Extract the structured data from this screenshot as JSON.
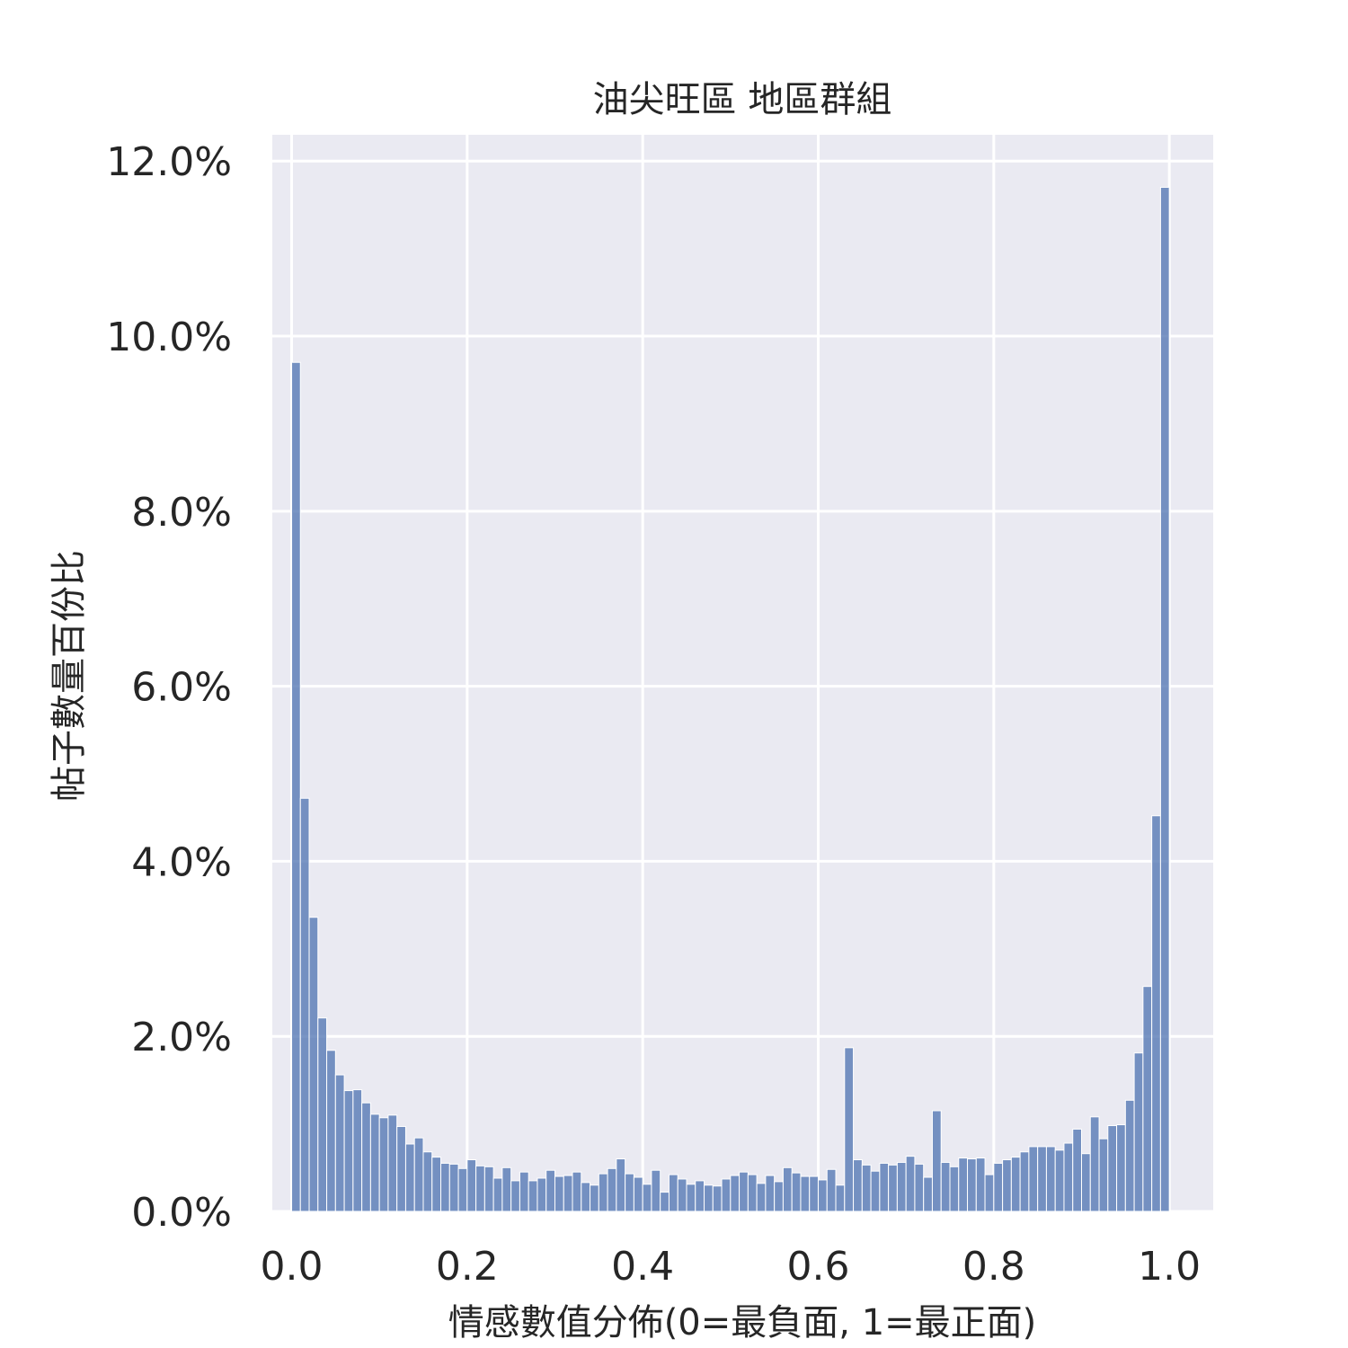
{
  "chart_data": {
    "type": "bar",
    "title": "油尖旺區 地區群組",
    "xlabel": "情感數值分佈(0=最負面, 1=最正面)",
    "ylabel": "帖子數量百份比",
    "xlim": [
      -0.022,
      1.05
    ],
    "ylim": [
      0,
      12.3
    ],
    "x_ticks": [
      "0.0",
      "0.2",
      "0.4",
      "0.6",
      "0.8",
      "1.0"
    ],
    "y_ticks": [
      "0.0%",
      "2.0%",
      "4.0%",
      "6.0%",
      "8.0%",
      "10.0%",
      "12.0%"
    ],
    "x_tick_values": [
      0.0,
      0.2,
      0.4,
      0.6,
      0.8,
      1.0
    ],
    "y_tick_values": [
      0,
      2,
      4,
      6,
      8,
      10,
      12
    ],
    "bin_start": 0.0,
    "bin_width": 0.01,
    "values": [
      9.7,
      4.72,
      3.36,
      2.21,
      1.84,
      1.56,
      1.38,
      1.39,
      1.24,
      1.11,
      1.07,
      1.1,
      0.97,
      0.77,
      0.84,
      0.68,
      0.62,
      0.55,
      0.54,
      0.49,
      0.59,
      0.52,
      0.51,
      0.38,
      0.5,
      0.35,
      0.45,
      0.35,
      0.38,
      0.47,
      0.4,
      0.41,
      0.45,
      0.33,
      0.3,
      0.43,
      0.49,
      0.6,
      0.43,
      0.39,
      0.31,
      0.47,
      0.22,
      0.42,
      0.37,
      0.31,
      0.35,
      0.3,
      0.29,
      0.37,
      0.41,
      0.45,
      0.42,
      0.32,
      0.41,
      0.34,
      0.5,
      0.44,
      0.4,
      0.4,
      0.36,
      0.48,
      0.3,
      1.87,
      0.59,
      0.53,
      0.46,
      0.55,
      0.53,
      0.56,
      0.63,
      0.54,
      0.39,
      1.15,
      0.56,
      0.51,
      0.61,
      0.6,
      0.61,
      0.42,
      0.55,
      0.59,
      0.62,
      0.68,
      0.74,
      0.74,
      0.74,
      0.7,
      0.78,
      0.94,
      0.66,
      1.08,
      0.83,
      0.98,
      0.99,
      1.27,
      1.81,
      2.57,
      4.52,
      11.7
    ],
    "grid": true,
    "colors": {
      "bar": "#4c72b0",
      "background": "#eaeaf2",
      "grid": "#ffffff"
    }
  }
}
